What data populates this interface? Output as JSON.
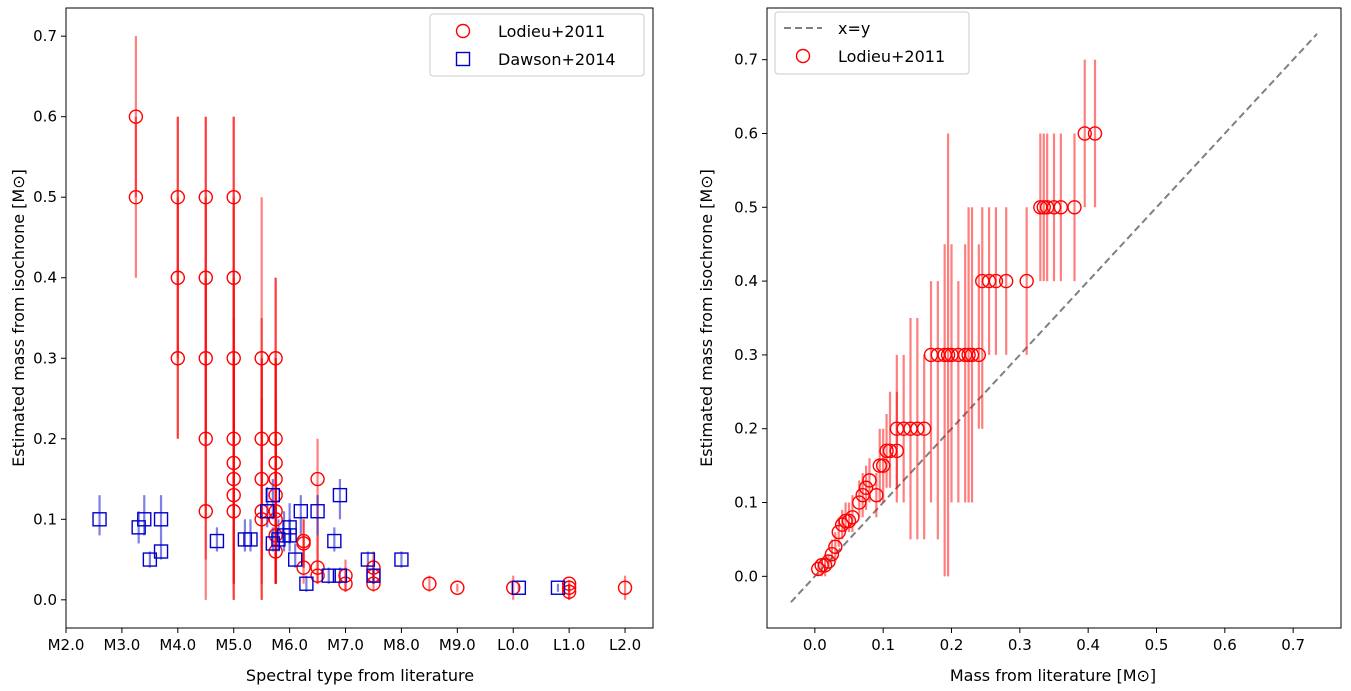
{
  "chart_data": [
    {
      "type": "scatter",
      "xlabel": "Spectral type from literature",
      "ylabel": "Estimated mass from isochrone [M⊙]",
      "xlim": [
        2.0,
        12.5
      ],
      "ylim": [
        -0.035,
        0.735
      ],
      "xticks": [
        2,
        3,
        4,
        5,
        6,
        7,
        8,
        9,
        10,
        11,
        12
      ],
      "xtick_labels": [
        "M2.0",
        "M3.0",
        "M4.0",
        "M5.0",
        "M6.0",
        "M7.0",
        "M8.0",
        "M9.0",
        "L0.0",
        "L1.0",
        "L2.0"
      ],
      "yticks": [
        0.0,
        0.1,
        0.2,
        0.3,
        0.4,
        0.5,
        0.6,
        0.7
      ],
      "ytick_labels": [
        "0.0",
        "0.1",
        "0.2",
        "0.3",
        "0.4",
        "0.5",
        "0.6",
        "0.7"
      ],
      "grid": false,
      "legend_position": "top-right",
      "series": [
        {
          "name": "Lodieu+2011",
          "marker": "circle",
          "color": "#ff0000",
          "points": [
            [
              3.25,
              0.6,
              0.5,
              0.7
            ],
            [
              3.25,
              0.5,
              0.4,
              0.6
            ],
            [
              4.0,
              0.5,
              0.3,
              0.6
            ],
            [
              4.0,
              0.4,
              0.2,
              0.6
            ],
            [
              4.0,
              0.3,
              0.2,
              0.5
            ],
            [
              4.5,
              0.5,
              0.3,
              0.6
            ],
            [
              4.5,
              0.4,
              0.2,
              0.6
            ],
            [
              4.5,
              0.3,
              0.1,
              0.5
            ],
            [
              4.5,
              0.2,
              0.05,
              0.4
            ],
            [
              4.5,
              0.11,
              0.0,
              0.3
            ],
            [
              5.0,
              0.5,
              0.2,
              0.6
            ],
            [
              5.0,
              0.4,
              0.2,
              0.6
            ],
            [
              5.0,
              0.3,
              0.1,
              0.5
            ],
            [
              5.0,
              0.2,
              0.05,
              0.4
            ],
            [
              5.0,
              0.17,
              0.02,
              0.35
            ],
            [
              5.0,
              0.15,
              0.02,
              0.3
            ],
            [
              5.0,
              0.13,
              0.0,
              0.3
            ],
            [
              5.0,
              0.11,
              0.0,
              0.3
            ],
            [
              5.5,
              0.3,
              0.1,
              0.5
            ],
            [
              5.5,
              0.2,
              0.05,
              0.35
            ],
            [
              5.5,
              0.15,
              0.02,
              0.3
            ],
            [
              5.5,
              0.11,
              0.0,
              0.3
            ],
            [
              5.5,
              0.1,
              0.0,
              0.25
            ],
            [
              5.75,
              0.3,
              0.1,
              0.4
            ],
            [
              5.75,
              0.2,
              0.05,
              0.4
            ],
            [
              5.75,
              0.17,
              0.05,
              0.3
            ],
            [
              5.75,
              0.15,
              0.02,
              0.3
            ],
            [
              5.75,
              0.13,
              0.02,
              0.3
            ],
            [
              5.75,
              0.11,
              0.02,
              0.25
            ],
            [
              5.75,
              0.1,
              0.02,
              0.2
            ],
            [
              5.75,
              0.08,
              0.02,
              0.2
            ],
            [
              5.75,
              0.06,
              0.02,
              0.2
            ],
            [
              6.25,
              0.073,
              0.04,
              0.1
            ],
            [
              6.25,
              0.07,
              0.04,
              0.1
            ],
            [
              6.25,
              0.04,
              0.02,
              0.08
            ],
            [
              6.5,
              0.15,
              0.05,
              0.2
            ],
            [
              6.5,
              0.04,
              0.02,
              0.08
            ],
            [
              6.5,
              0.03,
              0.02,
              0.05
            ],
            [
              7.0,
              0.03,
              0.01,
              0.05
            ],
            [
              7.0,
              0.02,
              0.01,
              0.04
            ],
            [
              7.5,
              0.04,
              0.02,
              0.06
            ],
            [
              7.5,
              0.03,
              0.02,
              0.05
            ],
            [
              7.5,
              0.02,
              0.01,
              0.04
            ],
            [
              8.5,
              0.02,
              0.01,
              0.03
            ],
            [
              9.0,
              0.015,
              0.01,
              0.02
            ],
            [
              10.0,
              0.015,
              0.0,
              0.03
            ],
            [
              11.0,
              0.02,
              0.01,
              0.025
            ],
            [
              11.0,
              0.015,
              0.0,
              0.02
            ],
            [
              11.0,
              0.01,
              0.0,
              0.02
            ],
            [
              12.0,
              0.015,
              0.0,
              0.03
            ]
          ]
        },
        {
          "name": "Dawson+2014",
          "marker": "square",
          "color": "#0000cc",
          "points": [
            [
              2.6,
              0.1,
              0.08,
              0.13
            ],
            [
              3.3,
              0.09,
              0.07,
              0.11
            ],
            [
              3.4,
              0.1,
              0.08,
              0.13
            ],
            [
              3.5,
              0.05,
              0.04,
              0.06
            ],
            [
              3.7,
              0.1,
              0.08,
              0.13
            ],
            [
              3.7,
              0.06,
              0.05,
              0.08
            ],
            [
              4.7,
              0.073,
              0.06,
              0.09
            ],
            [
              5.2,
              0.075,
              0.06,
              0.1
            ],
            [
              5.3,
              0.075,
              0.06,
              0.1
            ],
            [
              5.6,
              0.11,
              0.09,
              0.14
            ],
            [
              5.7,
              0.13,
              0.1,
              0.15
            ],
            [
              5.7,
              0.07,
              0.06,
              0.09
            ],
            [
              5.8,
              0.075,
              0.06,
              0.1
            ],
            [
              5.9,
              0.08,
              0.06,
              0.11
            ],
            [
              6.0,
              0.09,
              0.07,
              0.12
            ],
            [
              6.0,
              0.08,
              0.06,
              0.1
            ],
            [
              6.1,
              0.05,
              0.04,
              0.07
            ],
            [
              6.2,
              0.11,
              0.08,
              0.13
            ],
            [
              6.3,
              0.02,
              0.01,
              0.03
            ],
            [
              6.5,
              0.11,
              0.08,
              0.13
            ],
            [
              6.7,
              0.03,
              0.02,
              0.04
            ],
            [
              6.8,
              0.073,
              0.06,
              0.09
            ],
            [
              6.9,
              0.13,
              0.1,
              0.15
            ],
            [
              6.9,
              0.03,
              0.02,
              0.04
            ],
            [
              7.4,
              0.05,
              0.04,
              0.06
            ],
            [
              7.5,
              0.03,
              0.02,
              0.04
            ],
            [
              8.0,
              0.05,
              0.04,
              0.06
            ],
            [
              10.1,
              0.015,
              0.01,
              0.02
            ],
            [
              10.8,
              0.015,
              0.01,
              0.02
            ]
          ]
        }
      ]
    },
    {
      "type": "scatter",
      "xlabel": "Mass from literature [M⊙]",
      "ylabel": "Estimated mass from isochrone [M⊙]",
      "xlim": [
        -0.07,
        0.77
      ],
      "ylim": [
        -0.07,
        0.77
      ],
      "xticks": [
        0.0,
        0.1,
        0.2,
        0.3,
        0.4,
        0.5,
        0.6,
        0.7
      ],
      "xtick_labels": [
        "0.0",
        "0.1",
        "0.2",
        "0.3",
        "0.4",
        "0.5",
        "0.6",
        "0.7"
      ],
      "yticks": [
        0.0,
        0.1,
        0.2,
        0.3,
        0.4,
        0.5,
        0.6,
        0.7
      ],
      "ytick_labels": [
        "0.0",
        "0.1",
        "0.2",
        "0.3",
        "0.4",
        "0.5",
        "0.6",
        "0.7"
      ],
      "grid": false,
      "legend_position": "top-left",
      "reference_line": {
        "name": "x=y",
        "style": "dashed",
        "color": "#808080",
        "from": [
          -0.035,
          -0.035
        ],
        "to": [
          0.735,
          0.735
        ]
      },
      "series": [
        {
          "name": "Lodieu+2011",
          "marker": "circle",
          "color": "#ff0000",
          "points": [
            [
              0.005,
              0.01,
              0.0,
              0.02
            ],
            [
              0.01,
              0.015,
              0.0,
              0.02
            ],
            [
              0.015,
              0.015,
              0.0,
              0.03
            ],
            [
              0.02,
              0.02,
              0.01,
              0.03
            ],
            [
              0.025,
              0.03,
              0.02,
              0.05
            ],
            [
              0.03,
              0.04,
              0.02,
              0.06
            ],
            [
              0.035,
              0.06,
              0.04,
              0.08
            ],
            [
              0.04,
              0.07,
              0.05,
              0.09
            ],
            [
              0.045,
              0.075,
              0.06,
              0.1
            ],
            [
              0.05,
              0.075,
              0.06,
              0.1
            ],
            [
              0.055,
              0.08,
              0.06,
              0.11
            ],
            [
              0.065,
              0.1,
              0.08,
              0.13
            ],
            [
              0.07,
              0.11,
              0.08,
              0.14
            ],
            [
              0.075,
              0.12,
              0.09,
              0.15
            ],
            [
              0.08,
              0.13,
              0.1,
              0.16
            ],
            [
              0.09,
              0.11,
              0.08,
              0.14
            ],
            [
              0.095,
              0.15,
              0.1,
              0.2
            ],
            [
              0.1,
              0.15,
              0.1,
              0.2
            ],
            [
              0.105,
              0.17,
              0.12,
              0.22
            ],
            [
              0.11,
              0.17,
              0.12,
              0.25
            ],
            [
              0.12,
              0.17,
              0.12,
              0.25
            ],
            [
              0.12,
              0.2,
              0.1,
              0.3
            ],
            [
              0.13,
              0.2,
              0.1,
              0.3
            ],
            [
              0.14,
              0.2,
              0.05,
              0.35
            ],
            [
              0.15,
              0.2,
              0.05,
              0.35
            ],
            [
              0.16,
              0.2,
              0.05,
              0.3
            ],
            [
              0.17,
              0.3,
              0.1,
              0.4
            ],
            [
              0.18,
              0.3,
              0.05,
              0.4
            ],
            [
              0.19,
              0.3,
              0.0,
              0.45
            ],
            [
              0.195,
              0.3,
              0.0,
              0.6
            ],
            [
              0.2,
              0.3,
              0.1,
              0.45
            ],
            [
              0.21,
              0.3,
              0.1,
              0.4
            ],
            [
              0.22,
              0.3,
              0.1,
              0.45
            ],
            [
              0.225,
              0.3,
              0.1,
              0.5
            ],
            [
              0.23,
              0.3,
              0.1,
              0.5
            ],
            [
              0.24,
              0.3,
              0.2,
              0.45
            ],
            [
              0.245,
              0.4,
              0.2,
              0.5
            ],
            [
              0.255,
              0.4,
              0.3,
              0.5
            ],
            [
              0.265,
              0.4,
              0.3,
              0.5
            ],
            [
              0.28,
              0.4,
              0.3,
              0.5
            ],
            [
              0.31,
              0.4,
              0.3,
              0.5
            ],
            [
              0.33,
              0.5,
              0.4,
              0.6
            ],
            [
              0.335,
              0.5,
              0.4,
              0.6
            ],
            [
              0.34,
              0.5,
              0.4,
              0.6
            ],
            [
              0.35,
              0.5,
              0.4,
              0.6
            ],
            [
              0.36,
              0.5,
              0.4,
              0.6
            ],
            [
              0.38,
              0.5,
              0.4,
              0.6
            ],
            [
              0.395,
              0.6,
              0.5,
              0.7
            ],
            [
              0.41,
              0.6,
              0.5,
              0.7
            ]
          ]
        }
      ]
    }
  ]
}
